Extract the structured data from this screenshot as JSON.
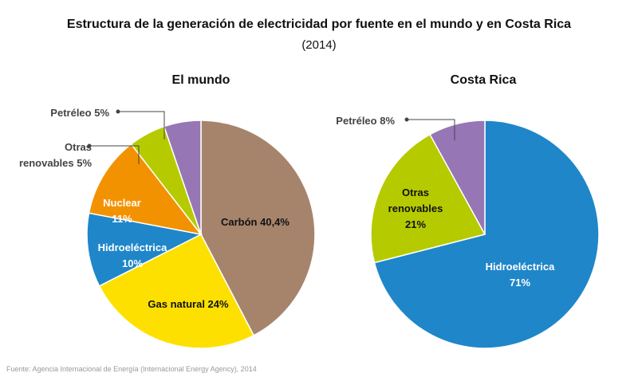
{
  "title": "Estructura de la generación de electricidad por fuente en el mundo y en Costa Rica",
  "subtitle": "(2014)",
  "source": "Fuente: Agencia Internacional de Energía (Internacional Energy Agency), 2014",
  "chart_data": [
    {
      "type": "pie",
      "title": "El mundo",
      "slices": [
        {
          "name": "Carbón",
          "value": 40.4,
          "label": [
            "Carbón 40,4%"
          ],
          "color": "#a6846b"
        },
        {
          "name": "Gas natural",
          "value": 24,
          "label": [
            "Gas natural 24%"
          ],
          "color": "#fde000"
        },
        {
          "name": "Hidroeléctrica",
          "value": 10,
          "label": [
            "Hidroeléctrica",
            "10%"
          ],
          "color": "#1f86c9"
        },
        {
          "name": "Nuclear",
          "value": 11,
          "label": [
            "Nuclear",
            "11%"
          ],
          "color": "#f39200"
        },
        {
          "name": "Otras renovables",
          "value": 5,
          "label": [
            "Otras",
            "renovables 5%"
          ],
          "color": "#b5cb00"
        },
        {
          "name": "Petróleo",
          "value": 5,
          "label": [
            "Petréleo 5%"
          ],
          "color": "#9676b5"
        }
      ]
    },
    {
      "type": "pie",
      "title": "Costa Rica",
      "slices": [
        {
          "name": "Hidroeléctrica",
          "value": 71,
          "label": [
            "Hidroeléctrica",
            "71%"
          ],
          "color": "#1f86c9"
        },
        {
          "name": "Otras renovables",
          "value": 21,
          "label": [
            "Otras",
            "renovables",
            "21%"
          ],
          "color": "#b5cb00"
        },
        {
          "name": "Petróleo",
          "value": 8,
          "label": [
            "Petréleo 8%"
          ],
          "color": "#9676b5"
        }
      ]
    }
  ]
}
